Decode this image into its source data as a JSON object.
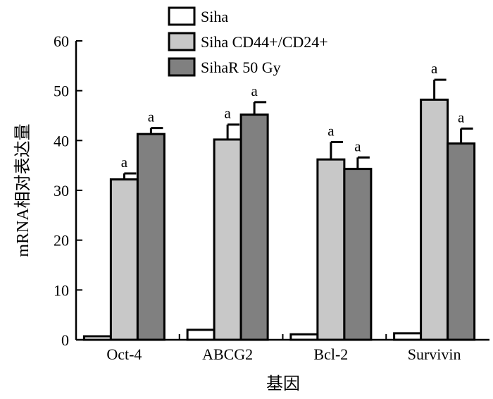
{
  "chart_data": {
    "type": "bar",
    "ylabel": "mRNA相对表达量",
    "xlabel": "基因",
    "ylim": [
      0,
      60
    ],
    "yticks": [
      0,
      10,
      20,
      30,
      40,
      50,
      60
    ],
    "categories": [
      "Oct-4",
      "ABCG2",
      "Bcl-2",
      "Survivin"
    ],
    "series": [
      {
        "name": "Siha",
        "color": "#ffffff",
        "values": [
          0.7,
          2.0,
          1.1,
          1.3
        ],
        "errors": [
          0,
          0,
          0,
          0
        ],
        "sig": [
          "",
          "",
          "",
          ""
        ]
      },
      {
        "name": "Siha CD44+/CD24+",
        "color": "#c8c8c8",
        "values": [
          32.2,
          40.2,
          36.2,
          48.2
        ],
        "errors": [
          1.2,
          3.0,
          3.5,
          4.0
        ],
        "sig": [
          "a",
          "a",
          "a",
          "a"
        ]
      },
      {
        "name": "SihaR 50 Gy",
        "color": "#808080",
        "values": [
          41.3,
          45.2,
          34.3,
          39.4
        ],
        "errors": [
          1.2,
          2.5,
          2.3,
          3.0
        ],
        "sig": [
          "a",
          "a",
          "a",
          "a"
        ]
      }
    ],
    "legend_position": "top"
  }
}
